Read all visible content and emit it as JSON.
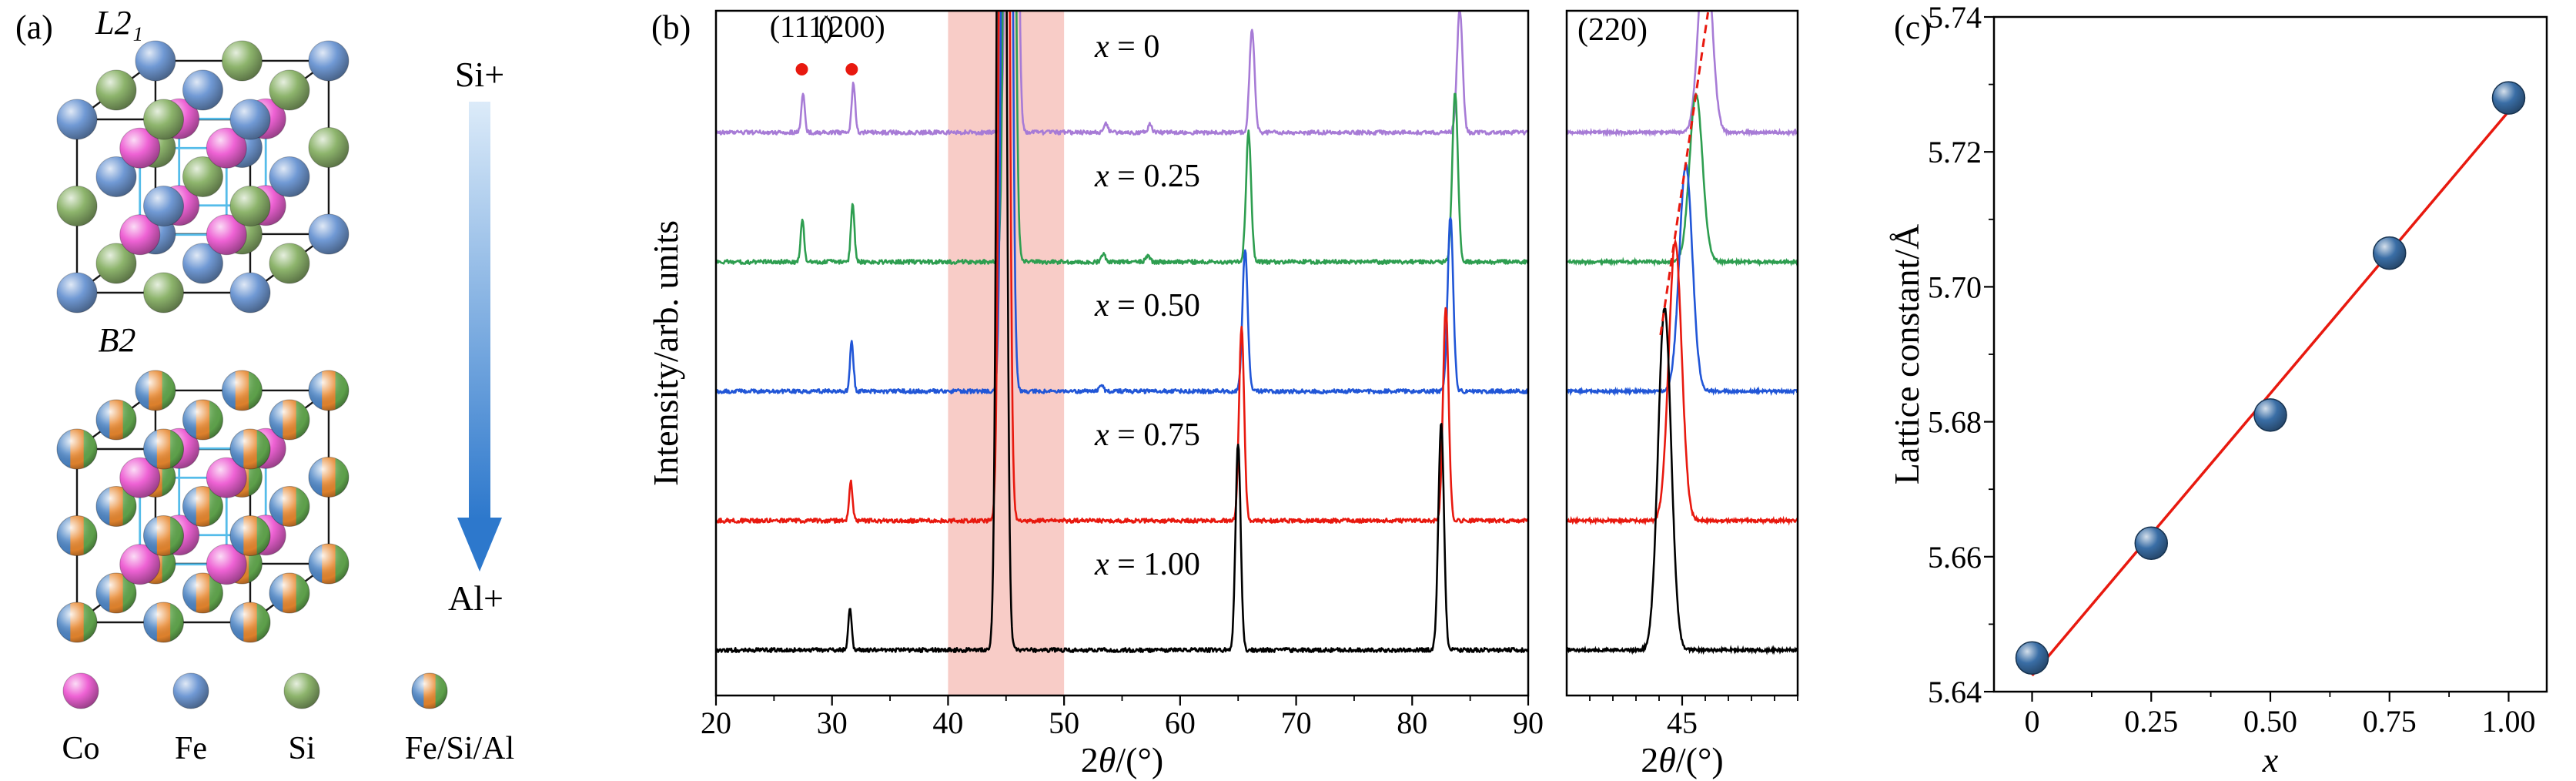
{
  "figure": {
    "panel_a": {
      "label": "(a)",
      "top_structure_label": "L2₁",
      "bottom_structure_label": "B2",
      "arrow": {
        "top_label": "Si+",
        "bottom_label": "Al+",
        "gradient_top": "#dcebf9",
        "gradient_bottom": "#2d78cc"
      },
      "legend": [
        {
          "label": "Co",
          "type": "solid",
          "color": "#ee62d4"
        },
        {
          "label": "Fe",
          "type": "solid",
          "color": "#7099d4"
        },
        {
          "label": "Si",
          "type": "solid",
          "color": "#8db46c"
        },
        {
          "label": "Fe/Si/Al",
          "type": "striped",
          "colors": [
            "#4e86c6",
            "#e8872e",
            "#62a84e"
          ]
        }
      ]
    },
    "panel_b": {
      "label": "(b)"
    },
    "panel_c": {
      "label": "(c)"
    }
  },
  "chart_data": [
    {
      "id": "xrd_main",
      "type": "line",
      "xlabel": "2θ/(°)",
      "ylabel": "Intensity/arb. units",
      "xlim": [
        20,
        90
      ],
      "x_ticks": [
        20,
        30,
        40,
        50,
        60,
        70,
        80,
        90
      ],
      "highlight_band": {
        "range": [
          40,
          50
        ],
        "color": "#f8ccc7"
      },
      "peak_markers": [
        {
          "label": "(111)",
          "two_theta": 27.4,
          "dot_color": "#e8190f"
        },
        {
          "label": "(200)",
          "two_theta": 31.7,
          "dot_color": "#e8190f"
        }
      ],
      "noise": 0.016,
      "series": [
        {
          "name": "x = 0",
          "color": "#a77bd6",
          "peaks": [
            [
              27.5,
              0.3,
              0.15
            ],
            [
              31.85,
              0.38,
              0.15
            ],
            [
              45.5,
              14,
              0.3
            ],
            [
              53.6,
              0.07,
              0.18
            ],
            [
              57.4,
              0.06,
              0.18
            ],
            [
              66.2,
              0.8,
              0.22
            ],
            [
              84.1,
              0.95,
              0.24
            ]
          ]
        },
        {
          "name": "x = 0.25",
          "color": "#2e9e50",
          "peaks": [
            [
              27.45,
              0.32,
              0.15
            ],
            [
              31.78,
              0.45,
              0.15
            ],
            [
              45.3,
              14,
              0.3
            ],
            [
              53.4,
              0.06,
              0.18
            ],
            [
              57.2,
              0.05,
              0.18
            ],
            [
              65.9,
              1.0,
              0.22
            ],
            [
              83.7,
              1.3,
              0.24
            ]
          ]
        },
        {
          "name": "x = 0.50",
          "color": "#2156d7",
          "peaks": [
            [
              31.7,
              0.38,
              0.15
            ],
            [
              45.08,
              14,
              0.3
            ],
            [
              53.2,
              0.05,
              0.18
            ],
            [
              65.6,
              1.1,
              0.22
            ],
            [
              83.3,
              1.35,
              0.24
            ]
          ]
        },
        {
          "name": "x = 0.75",
          "color": "#e8190f",
          "peaks": [
            [
              31.62,
              0.3,
              0.15
            ],
            [
              44.85,
              14,
              0.3
            ],
            [
              65.3,
              1.5,
              0.22
            ],
            [
              82.9,
              1.65,
              0.24
            ]
          ]
        },
        {
          "name": "x = 1.00",
          "color": "#000000",
          "peaks": [
            [
              31.55,
              0.33,
              0.15
            ],
            [
              44.62,
              14,
              0.3
            ],
            [
              65.0,
              1.6,
              0.22
            ],
            [
              82.5,
              1.75,
              0.24
            ]
          ]
        }
      ]
    },
    {
      "id": "xrd_zoom",
      "type": "line",
      "annotation": "(220)",
      "xlabel": "2θ/(°)",
      "xlim": [
        42.5,
        47.5
      ],
      "x_ticks": [
        45
      ],
      "peak_width": 0.14,
      "guide_line": {
        "style": "dashed",
        "color": "#e8190f"
      },
      "series": [
        {
          "name": "x = 0",
          "color": "#a77bd6",
          "peak": 45.5,
          "height": 1.55
        },
        {
          "name": "x = 0.25",
          "color": "#2e9e50",
          "peak": 45.3,
          "height": 1.3
        },
        {
          "name": "x = 0.50",
          "color": "#2156d7",
          "peak": 45.08,
          "height": 1.75
        },
        {
          "name": "x = 0.75",
          "color": "#e8190f",
          "peak": 44.85,
          "height": 2.15
        },
        {
          "name": "x = 1.00",
          "color": "#000000",
          "peak": 44.62,
          "height": 2.65
        }
      ]
    },
    {
      "id": "lattice_constant",
      "type": "scatter",
      "xlabel": "x",
      "ylabel": "Lattice constant/Å",
      "x": [
        0,
        0.25,
        0.5,
        0.75,
        1.0
      ],
      "y": [
        5.645,
        5.662,
        5.681,
        5.705,
        5.728
      ],
      "x_tick_labels": [
        "0",
        "0.25",
        "0.50",
        "0.75",
        "1.00"
      ],
      "y_ticks": [
        5.64,
        5.66,
        5.68,
        5.7,
        5.72,
        5.74
      ],
      "xlim": [
        -0.08,
        1.08
      ],
      "ylim": [
        5.64,
        5.74
      ],
      "fit_line": {
        "intercept": 5.6424,
        "slope": 0.0836,
        "color": "#e8190f"
      },
      "marker": {
        "shape": "sphere",
        "color": "#3a6ea6"
      }
    }
  ]
}
